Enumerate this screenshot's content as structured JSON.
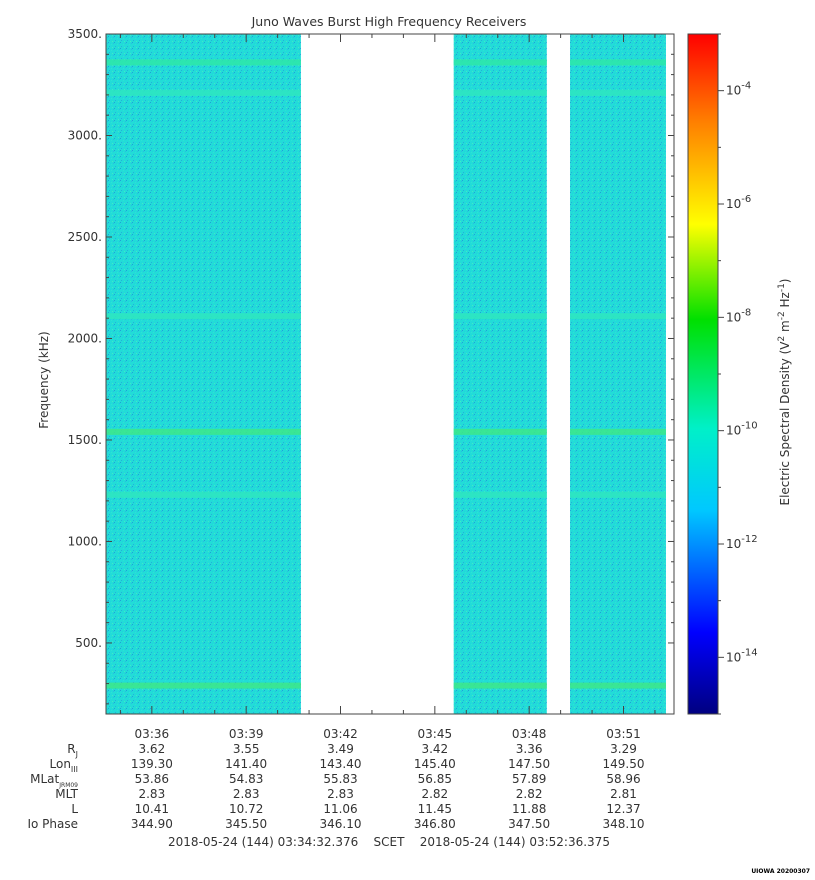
{
  "chart_data": {
    "type": "heatmap",
    "title": "Juno Waves Burst High Frequency Receivers",
    "ylabel": "Frequency (kHz)",
    "colorbar_label": "Electric Spectral Density (V² m⁻² Hz⁻¹)",
    "colorbar_label_base": "Electric Spectral Density (V",
    "colorbar_ticks": [
      {
        "exp": -4,
        "label": "10",
        "sup": "-4"
      },
      {
        "exp": -6,
        "label": "10",
        "sup": "-6"
      },
      {
        "exp": -8,
        "label": "10",
        "sup": "-8"
      },
      {
        "exp": -10,
        "label": "10",
        "sup": "-10"
      },
      {
        "exp": -12,
        "label": "10",
        "sup": "-12"
      },
      {
        "exp": -14,
        "label": "10",
        "sup": "-14"
      }
    ],
    "colorbar_range_exp": [
      -15,
      -3
    ],
    "y_range": [
      150,
      3500
    ],
    "y_ticks": [
      {
        "value": 500,
        "label": "500."
      },
      {
        "value": 1000,
        "label": "1000."
      },
      {
        "value": 1500,
        "label": "1500."
      },
      {
        "value": 2000,
        "label": "2000."
      },
      {
        "value": 2500,
        "label": "2500."
      },
      {
        "value": 3000,
        "label": "3000."
      },
      {
        "value": 3500,
        "label": "3500."
      }
    ],
    "x_range_minutes": [
      214.542,
      232.606
    ],
    "x_ticks": [
      {
        "minute": 216,
        "label": "03:36"
      },
      {
        "minute": 219,
        "label": "03:39"
      },
      {
        "minute": 222,
        "label": "03:42"
      },
      {
        "minute": 225,
        "label": "03:45"
      },
      {
        "minute": 228,
        "label": "03:48"
      },
      {
        "minute": 231,
        "label": "03:51"
      }
    ],
    "data_segments_minutes": [
      [
        214.542,
        220.74
      ],
      [
        225.6,
        228.56
      ],
      [
        229.3,
        232.35
      ]
    ],
    "background_level_exp": -12,
    "emission_bands": [
      {
        "freq_khz": 3360,
        "level_exp": -11
      },
      {
        "freq_khz": 3210,
        "level_exp": -11.5
      },
      {
        "freq_khz": 2110,
        "level_exp": -11.6
      },
      {
        "freq_khz": 1540,
        "level_exp": -10.8
      },
      {
        "freq_khz": 1230,
        "level_exp": -11.6
      },
      {
        "freq_khz": 290,
        "level_exp": -10.6
      }
    ],
    "ephemeris_rows": [
      {
        "name": "R",
        "sub": "J",
        "values": [
          "3.62",
          "3.55",
          "3.49",
          "3.42",
          "3.36",
          "3.29"
        ]
      },
      {
        "name": "Lon",
        "sub": "III",
        "values": [
          "139.30",
          "141.40",
          "143.40",
          "145.40",
          "147.50",
          "149.50"
        ]
      },
      {
        "name": "MLat",
        "sub": "JRM09",
        "values": [
          "53.86",
          "54.83",
          "55.83",
          "56.85",
          "57.89",
          "58.96"
        ]
      },
      {
        "name": "MLT",
        "sub": "",
        "values": [
          "2.83",
          "2.83",
          "2.83",
          "2.82",
          "2.82",
          "2.81"
        ]
      },
      {
        "name": "L",
        "sub": "",
        "values": [
          "10.41",
          "10.72",
          "11.06",
          "11.45",
          "11.88",
          "12.37"
        ]
      },
      {
        "name": "Io Phase",
        "sub": "",
        "values": [
          "344.90",
          "345.50",
          "346.10",
          "346.80",
          "347.50",
          "348.10"
        ]
      }
    ],
    "time_span": "2018-05-24 (144) 03:34:32.376    SCET    2018-05-24 (144) 03:52:36.375",
    "credit": "UIOWA 20200307"
  }
}
